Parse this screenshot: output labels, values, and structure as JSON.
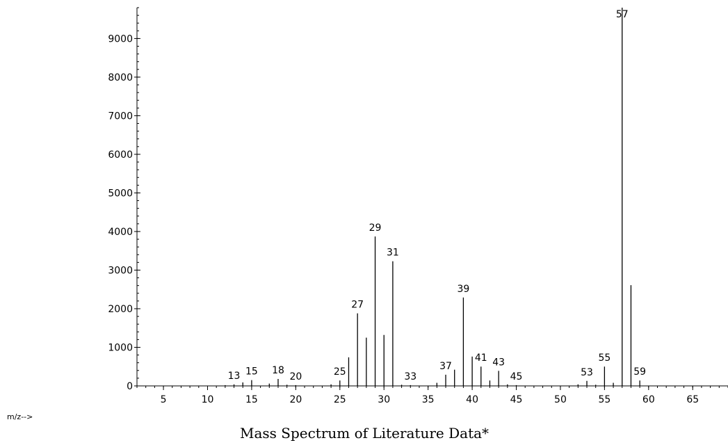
{
  "chart_data": {
    "type": "bar",
    "title": "Mass Spectrum of Literature Data*",
    "xlabel": "m/z-->",
    "ylabel": "",
    "xlim": [
      2,
      69
    ],
    "ylim": [
      0,
      9800
    ],
    "x_ticks": [
      5,
      10,
      15,
      20,
      25,
      30,
      35,
      40,
      45,
      50,
      55,
      60,
      65
    ],
    "y_ticks": [
      0,
      1000,
      2000,
      3000,
      4000,
      5000,
      6000,
      7000,
      8000,
      9000
    ],
    "grid": false,
    "legend": "none",
    "peaks": [
      {
        "mz": 12,
        "intensity": 20
      },
      {
        "mz": 13,
        "intensity": 40
      },
      {
        "mz": 14,
        "intensity": 90
      },
      {
        "mz": 15,
        "intensity": 150
      },
      {
        "mz": 17,
        "intensity": 60
      },
      {
        "mz": 18,
        "intensity": 180
      },
      {
        "mz": 19,
        "intensity": 30
      },
      {
        "mz": 20,
        "intensity": 20
      },
      {
        "mz": 24,
        "intensity": 40
      },
      {
        "mz": 25,
        "intensity": 140
      },
      {
        "mz": 26,
        "intensity": 740
      },
      {
        "mz": 27,
        "intensity": 1880
      },
      {
        "mz": 28,
        "intensity": 1250
      },
      {
        "mz": 29,
        "intensity": 3870
      },
      {
        "mz": 30,
        "intensity": 1320
      },
      {
        "mz": 31,
        "intensity": 3230
      },
      {
        "mz": 32,
        "intensity": 30
      },
      {
        "mz": 33,
        "intensity": 20
      },
      {
        "mz": 36,
        "intensity": 80
      },
      {
        "mz": 37,
        "intensity": 290
      },
      {
        "mz": 38,
        "intensity": 420
      },
      {
        "mz": 39,
        "intensity": 2290
      },
      {
        "mz": 40,
        "intensity": 760
      },
      {
        "mz": 41,
        "intensity": 500
      },
      {
        "mz": 42,
        "intensity": 140
      },
      {
        "mz": 43,
        "intensity": 390
      },
      {
        "mz": 44,
        "intensity": 40
      },
      {
        "mz": 45,
        "intensity": 20
      },
      {
        "mz": 52,
        "intensity": 40
      },
      {
        "mz": 53,
        "intensity": 130
      },
      {
        "mz": 54,
        "intensity": 30
      },
      {
        "mz": 55,
        "intensity": 500
      },
      {
        "mz": 56,
        "intensity": 80
      },
      {
        "mz": 57,
        "intensity": 9800
      },
      {
        "mz": 58,
        "intensity": 2610
      },
      {
        "mz": 59,
        "intensity": 140
      }
    ],
    "peak_labels": [
      13,
      15,
      18,
      20,
      25,
      27,
      29,
      31,
      33,
      37,
      39,
      41,
      43,
      45,
      53,
      55,
      57,
      59
    ]
  }
}
